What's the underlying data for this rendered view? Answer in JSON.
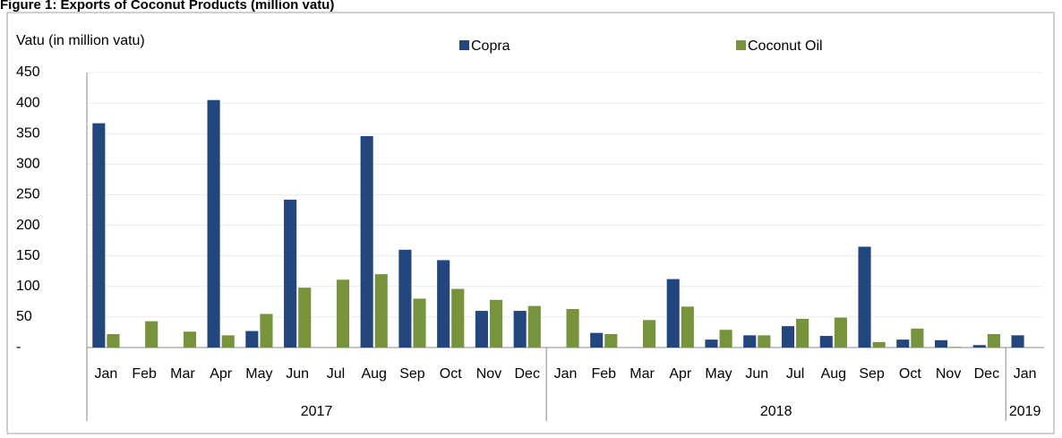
{
  "chart_data": {
    "type": "bar",
    "title": "Figure 1: Exports of Coconut Products (million vatu)",
    "y_label": "Vatu (in million vatu)",
    "groups": [
      {
        "label": "2017",
        "categories": [
          "Jan",
          "Feb",
          "Mar",
          "Apr",
          "May",
          "Jun",
          "Jul",
          "Aug",
          "Sep",
          "Oct",
          "Nov",
          "Dec"
        ]
      },
      {
        "label": "2018",
        "categories": [
          "Jan",
          "Feb",
          "Mar",
          "Apr",
          "May",
          "Jun",
          "Jul",
          "Aug",
          "Sep",
          "Oct",
          "Nov",
          "Dec"
        ]
      },
      {
        "label": "2019",
        "categories": [
          "Jan"
        ]
      }
    ],
    "series": [
      {
        "name": "Copra",
        "color": "#24467f",
        "values": [
          367,
          null,
          null,
          405,
          27,
          242,
          null,
          346,
          160,
          143,
          60,
          60,
          null,
          24,
          null,
          112,
          13,
          20,
          35,
          19,
          165,
          13,
          12,
          4,
          20
        ]
      },
      {
        "name": "Coconut Oil",
        "color": "#77933c",
        "values": [
          22,
          43,
          26,
          20,
          55,
          98,
          111,
          120,
          80,
          96,
          78,
          68,
          63,
          22,
          45,
          67,
          29,
          20,
          47,
          49,
          9,
          31,
          1,
          22,
          null
        ]
      }
    ],
    "ylim": [
      0,
      450
    ],
    "yticks": [
      {
        "value": 0,
        "label": "-"
      },
      50,
      100,
      150,
      200,
      250,
      300,
      350,
      400,
      450
    ],
    "grid": true
  }
}
